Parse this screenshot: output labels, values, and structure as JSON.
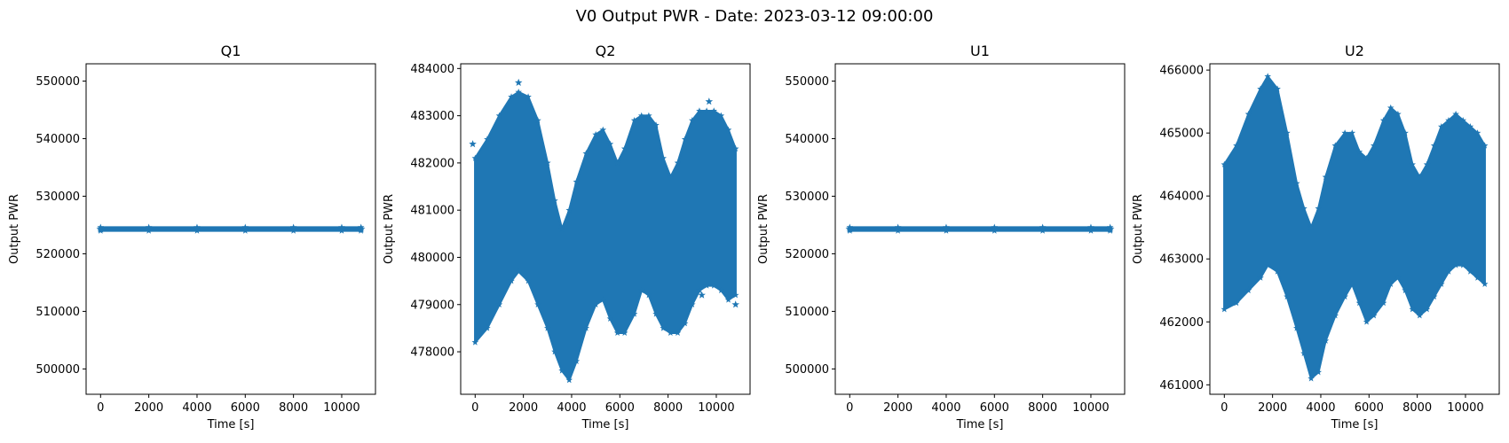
{
  "figure": {
    "title": "V0 Output PWR - Date: 2023-03-12 09:00:00",
    "color": "#1f77b4"
  },
  "chart_data": [
    {
      "type": "scatter",
      "marker": "star",
      "title": "Q1",
      "xlabel": "Time [s]",
      "ylabel": "Output PWR",
      "xlim": [
        -600,
        11400
      ],
      "ylim": [
        495600,
        553000
      ],
      "xticks": [
        0,
        2000,
        4000,
        6000,
        8000,
        10000
      ],
      "yticks": [
        500000,
        510000,
        520000,
        530000,
        540000,
        550000
      ],
      "series": [
        {
          "x": [
            0,
            2000,
            4000,
            6000,
            8000,
            10000,
            10800
          ],
          "center": [
            524300,
            524300,
            524300,
            524300,
            524300,
            524300,
            524300
          ],
          "lower": [
            524000,
            524000,
            524000,
            524000,
            524000,
            524000,
            524000
          ],
          "upper": [
            524600,
            524600,
            524600,
            524600,
            524600,
            524600,
            524600
          ]
        }
      ]
    },
    {
      "type": "scatter",
      "marker": "star",
      "title": "Q2",
      "xlabel": "Time [s]",
      "ylabel": "Output PWR",
      "xlim": [
        -600,
        11400
      ],
      "ylim": [
        477100,
        484100
      ],
      "xticks": [
        0,
        2000,
        4000,
        6000,
        8000,
        10000
      ],
      "yticks": [
        478000,
        479000,
        480000,
        481000,
        482000,
        483000,
        484000
      ],
      "series": [
        {
          "x": [
            0,
            500,
            1000,
            1500,
            1800,
            2200,
            2600,
            3000,
            3300,
            3600,
            3900,
            4200,
            4600,
            5000,
            5300,
            5600,
            5900,
            6200,
            6600,
            6900,
            7200,
            7500,
            7800,
            8100,
            8400,
            8700,
            9000,
            9300,
            9600,
            9900,
            10200,
            10500,
            10800
          ],
          "lower": [
            478200,
            478500,
            479000,
            479500,
            479700,
            479500,
            479000,
            478500,
            478000,
            477600,
            477400,
            477800,
            478500,
            479000,
            479100,
            478700,
            478400,
            478400,
            478800,
            479300,
            479200,
            478800,
            478500,
            478400,
            478400,
            478600,
            479000,
            479300,
            479400,
            479400,
            479300,
            479100,
            479200
          ],
          "upper": [
            482100,
            482500,
            483000,
            483400,
            483500,
            483400,
            482900,
            482000,
            481200,
            480600,
            481000,
            481600,
            482200,
            482600,
            482700,
            482400,
            482000,
            482300,
            482900,
            483000,
            483000,
            482800,
            482100,
            481700,
            482000,
            482500,
            482900,
            483100,
            483100,
            483100,
            483000,
            482700,
            482300
          ],
          "outliers": [
            [
              1800,
              483700
            ],
            [
              9700,
              483300
            ],
            [
              -100,
              482400
            ],
            [
              10800,
              479000
            ],
            [
              9400,
              479200
            ]
          ]
        }
      ]
    },
    {
      "type": "scatter",
      "marker": "star",
      "title": "U1",
      "xlabel": "Time [s]",
      "ylabel": "Output PWR",
      "xlim": [
        -600,
        11400
      ],
      "ylim": [
        495600,
        553000
      ],
      "xticks": [
        0,
        2000,
        4000,
        6000,
        8000,
        10000
      ],
      "yticks": [
        500000,
        510000,
        520000,
        530000,
        540000,
        550000
      ],
      "series": [
        {
          "x": [
            0,
            2000,
            4000,
            6000,
            8000,
            10000,
            10800
          ],
          "center": [
            524300,
            524300,
            524300,
            524300,
            524300,
            524300,
            524300
          ],
          "lower": [
            524000,
            524000,
            524000,
            524000,
            524000,
            524000,
            524000
          ],
          "upper": [
            524600,
            524600,
            524600,
            524600,
            524600,
            524600,
            524600
          ]
        }
      ]
    },
    {
      "type": "scatter",
      "marker": "star",
      "title": "U2",
      "xlabel": "Time [s]",
      "ylabel": "Output PWR",
      "xlim": [
        -600,
        11400
      ],
      "ylim": [
        460850,
        466100
      ],
      "xticks": [
        0,
        2000,
        4000,
        6000,
        8000,
        10000
      ],
      "yticks": [
        461000,
        462000,
        463000,
        464000,
        465000,
        466000
      ],
      "series": [
        {
          "x": [
            0,
            500,
            1000,
            1500,
            1800,
            2200,
            2600,
            3000,
            3300,
            3600,
            3900,
            4200,
            4600,
            5000,
            5300,
            5600,
            5900,
            6200,
            6600,
            6900,
            7200,
            7500,
            7800,
            8100,
            8400,
            8700,
            9000,
            9300,
            9600,
            9900,
            10200,
            10500,
            10800
          ],
          "lower": [
            462200,
            462300,
            462500,
            462700,
            462900,
            462800,
            462400,
            461900,
            461500,
            461100,
            461200,
            461700,
            462100,
            462400,
            462600,
            462300,
            462000,
            462100,
            462300,
            462600,
            462700,
            462500,
            462200,
            462100,
            462200,
            462400,
            462600,
            462800,
            462900,
            462900,
            462800,
            462700,
            462600
          ],
          "upper": [
            464500,
            464800,
            465300,
            465700,
            465900,
            465700,
            465000,
            464200,
            463800,
            463500,
            463800,
            464300,
            464800,
            465000,
            465000,
            464700,
            464600,
            464800,
            465200,
            465400,
            465300,
            465000,
            464500,
            464300,
            464500,
            464800,
            465100,
            465200,
            465300,
            465200,
            465100,
            465000,
            464800
          ]
        }
      ]
    }
  ]
}
